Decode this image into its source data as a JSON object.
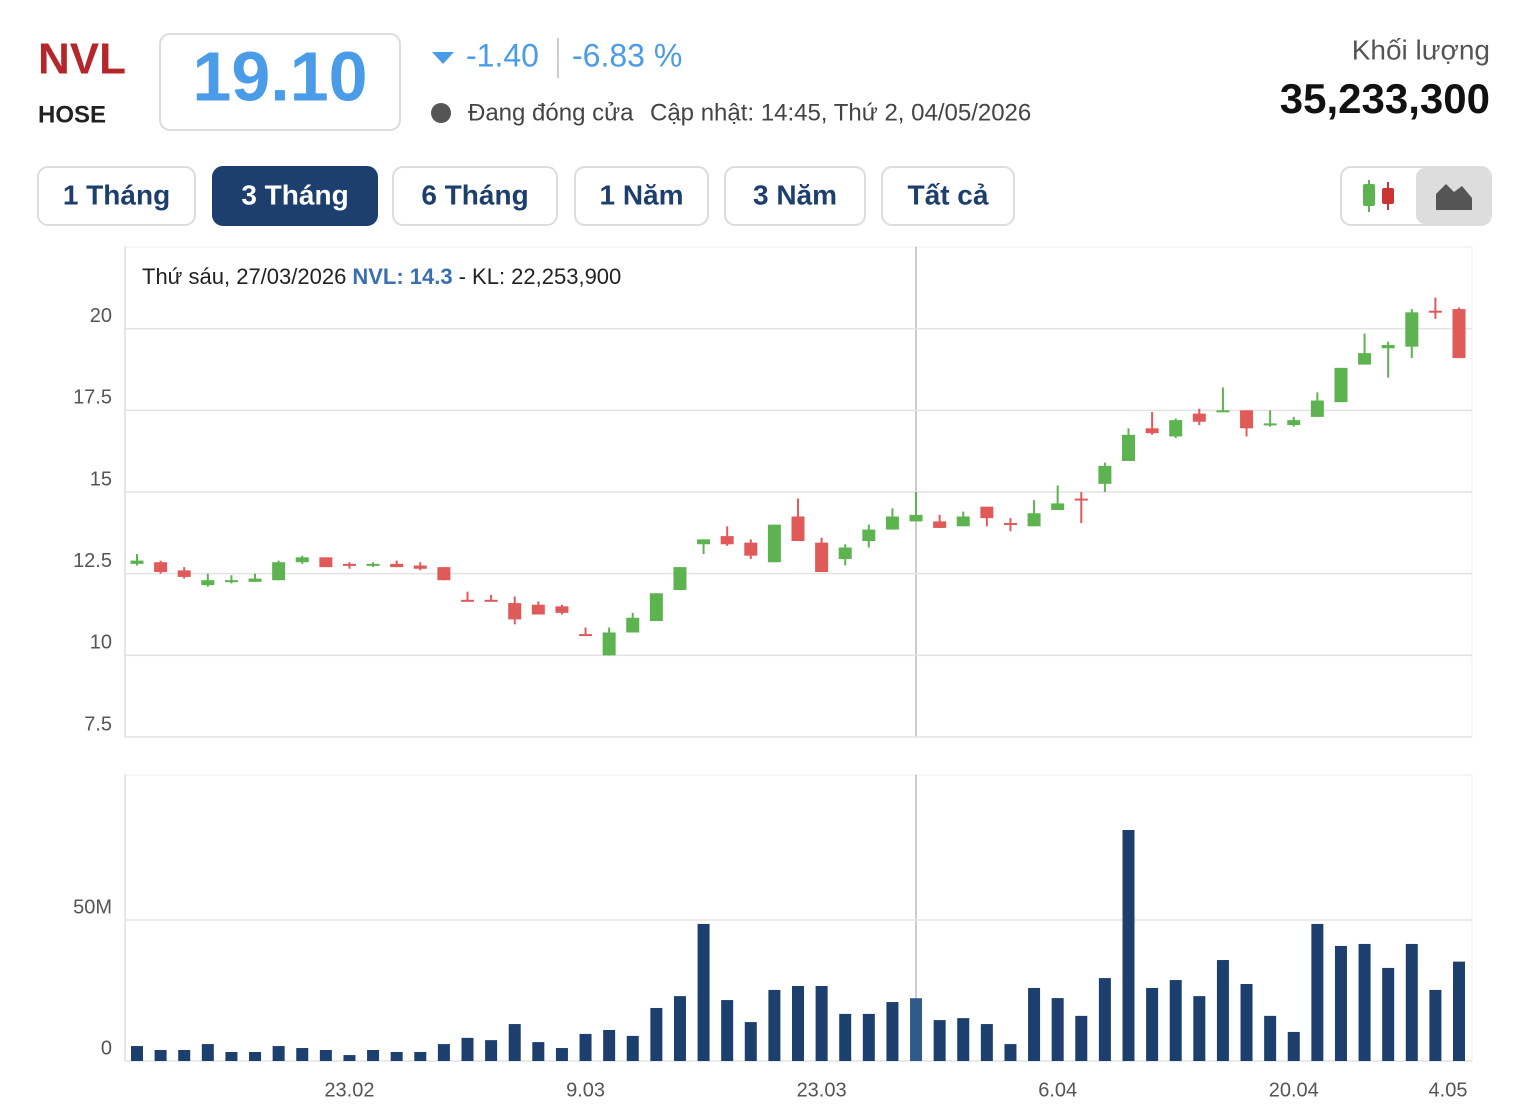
{
  "header": {
    "symbol": "NVL",
    "exchange": "HOSE",
    "price": "19.10",
    "change": "-1.40",
    "change_pct": "-6.83 %",
    "status": "Đang đóng cửa",
    "updated": "Cập nhật: 14:45, Thứ 2, 04/05/2026",
    "volume_label": "Khối lượng",
    "volume": "35,233,300"
  },
  "ranges": {
    "buttons": [
      "1 Tháng",
      "3 Tháng",
      "6 Tháng",
      "1 Năm",
      "3 Năm",
      "Tất cả"
    ],
    "active": 1
  },
  "tooltip": {
    "date": "Thứ sáu, 27/03/2026",
    "price": "NVL: 14.3",
    "volume": "- KL: 22,253,900"
  },
  "chart_data": [
    {
      "type": "candlestick",
      "up_color": "#5cb34f",
      "down_color": "#e05a5a",
      "grid": true,
      "ylim": [
        7.5,
        22.5
      ],
      "yticks": [
        7.5,
        10,
        12.5,
        15,
        17.5,
        20
      ],
      "open": [
        12.8,
        12.85,
        12.6,
        12.15,
        12.25,
        12.25,
        12.3,
        12.85,
        13,
        12.8,
        12.75,
        12.8,
        12.75,
        12.7,
        11.7,
        11.7,
        11.6,
        11.55,
        11.5,
        10.65,
        10,
        10.7,
        11.05,
        12,
        13.4,
        13.65,
        13.45,
        12.85,
        14.25,
        13.45,
        12.95,
        13.5,
        13.85,
        14.1,
        14.1,
        13.95,
        14.55,
        14.05,
        13.95,
        14.45,
        14.8,
        15.25,
        15.95,
        16.95,
        16.7,
        17.4,
        17.45,
        17.5,
        17.05,
        17.05,
        17.3,
        17.75,
        18.9,
        19.4,
        19.45,
        20.55,
        20.6
      ],
      "high": [
        13.1,
        12.9,
        12.7,
        12.5,
        12.45,
        12.5,
        12.9,
        13.05,
        13,
        12.85,
        12.85,
        12.9,
        12.85,
        12.7,
        11.95,
        11.85,
        11.8,
        11.65,
        11.55,
        10.85,
        10.85,
        11.3,
        11.9,
        12.7,
        13.55,
        13.95,
        13.55,
        14,
        14.8,
        13.6,
        13.4,
        14,
        14.5,
        15,
        14.3,
        14.4,
        14.55,
        14.2,
        14.75,
        15.2,
        15,
        15.9,
        16.95,
        17.45,
        17.25,
        17.55,
        18.2,
        17.5,
        17.5,
        17.3,
        18.05,
        18.8,
        19.85,
        19.6,
        20.6,
        20.95,
        20.65
      ],
      "low": [
        12.75,
        12.5,
        12.35,
        12.1,
        12.2,
        12.25,
        12.3,
        12.8,
        12.7,
        12.65,
        12.7,
        12.7,
        12.6,
        12.3,
        11.65,
        11.65,
        10.95,
        11.25,
        11.25,
        10.6,
        10,
        10.7,
        11.05,
        12,
        13.1,
        13.35,
        12.95,
        12.85,
        13.5,
        12.55,
        12.75,
        13.3,
        13.85,
        14.1,
        13.9,
        13.95,
        13.95,
        13.8,
        13.95,
        14.45,
        14.05,
        15,
        15.95,
        16.75,
        16.65,
        17.05,
        17.45,
        16.7,
        17,
        17,
        17.3,
        17.75,
        18.9,
        18.5,
        19.1,
        20.3,
        19.1
      ],
      "close": [
        12.9,
        12.55,
        12.4,
        12.3,
        12.3,
        12.35,
        12.85,
        13,
        12.7,
        12.75,
        12.8,
        12.7,
        12.65,
        12.3,
        11.65,
        11.65,
        11.1,
        11.25,
        11.3,
        10.6,
        10.7,
        11.15,
        11.9,
        12.7,
        13.55,
        13.4,
        13.05,
        14,
        13.5,
        12.55,
        13.3,
        13.85,
        14.25,
        14.3,
        13.9,
        14.25,
        14.2,
        14.0,
        14.35,
        14.65,
        14.75,
        15.8,
        16.75,
        16.8,
        17.2,
        17.15,
        17.5,
        16.95,
        17.1,
        17.2,
        17.8,
        18.8,
        19.25,
        19.5,
        20.5,
        20.5,
        19.1
      ]
    },
    {
      "type": "bar",
      "color": "#1c3f6e",
      "highlight_color": "#2f5a8a",
      "highlight": 33,
      "grid": true,
      "ylim": [
        0,
        101400000
      ],
      "yticks": [
        0,
        {
          "value": 50000000,
          "label": "50M"
        }
      ],
      "categories": [
        null,
        null,
        null,
        null,
        null,
        null,
        null,
        null,
        null,
        "23.02",
        null,
        null,
        null,
        null,
        null,
        null,
        null,
        null,
        null,
        "9.03",
        null,
        null,
        null,
        null,
        null,
        null,
        null,
        null,
        null,
        "23.03",
        null,
        null,
        null,
        null,
        null,
        null,
        null,
        null,
        null,
        "6.04",
        null,
        null,
        null,
        null,
        null,
        null,
        null,
        null,
        null,
        "20.04",
        null,
        null,
        null,
        null,
        null,
        null,
        "4.05"
      ],
      "values": [
        5300000,
        3900000,
        3900000,
        6000000,
        3200000,
        3200000,
        5300000,
        4600000,
        3900000,
        2100000,
        3900000,
        3200000,
        3200000,
        6000000,
        8200000,
        7400000,
        13100000,
        6700000,
        4600000,
        9600000,
        11000000,
        8900000,
        18800000,
        23000000,
        48600000,
        21600000,
        13800000,
        25200000,
        26600000,
        26600000,
        16700000,
        16700000,
        20900000,
        22253900,
        14500000,
        15200000,
        13100000,
        6000000,
        25900000,
        22300000,
        16000000,
        29400000,
        81900000,
        25900000,
        28700000,
        23000000,
        35800000,
        27300000,
        16000000,
        10300000,
        48600000,
        40800000,
        41500000,
        33000000,
        41500000,
        25200000,
        35233300
      ]
    }
  ]
}
